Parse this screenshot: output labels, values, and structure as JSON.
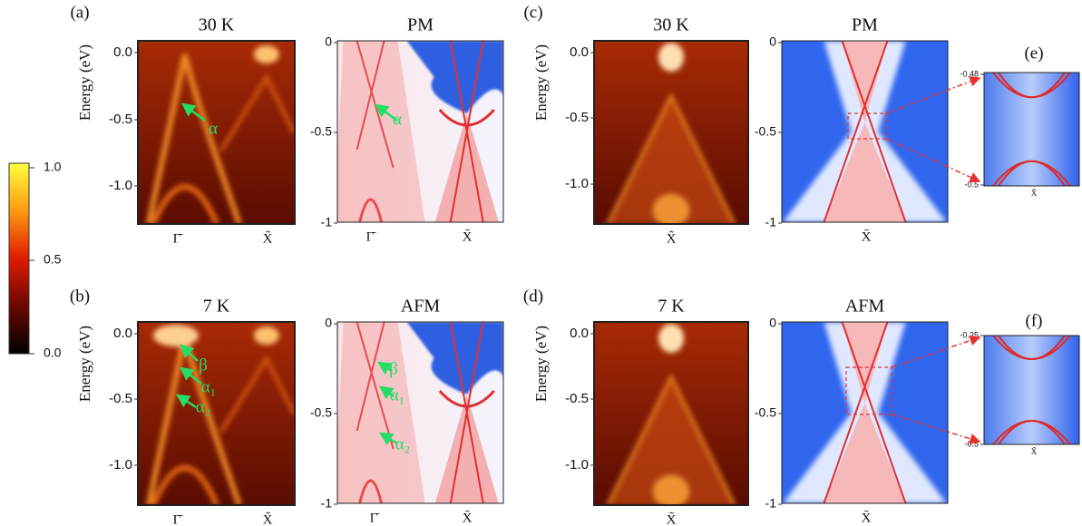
{
  "colorbar": {
    "ticks": [
      "1.0",
      "0.5",
      "0.0"
    ]
  },
  "panel_labels": [
    "(a)",
    "(b)",
    "(c)",
    "(d)",
    "(e)",
    "(f)"
  ],
  "panels": [
    {
      "title": "30 K",
      "y_label": "Energy (eV)",
      "y_ticks": [
        "0.0",
        "-0.5",
        "-1.0"
      ],
      "x_ticks": [
        "Γ̄",
        "X̃"
      ],
      "annotations": [
        "α"
      ]
    },
    {
      "title": "PM",
      "y_ticks": [
        "0",
        "-0.5",
        "-1"
      ],
      "x_ticks": [
        "Γ̄",
        "X̄"
      ],
      "annotations": [
        "α"
      ]
    },
    {
      "title": "30 K",
      "y_label": "Energy (eV)",
      "y_ticks": [
        "0.0",
        "-0.5",
        "-1.0"
      ],
      "x_ticks": [
        "X̃"
      ]
    },
    {
      "title": "PM",
      "y_ticks": [
        "0",
        "-0.5",
        "-1"
      ],
      "x_ticks": [
        "X̄"
      ]
    },
    {
      "y_ticks": [
        "-0.48",
        "-0.5"
      ],
      "x_ticks": [
        "X̃"
      ]
    },
    {
      "title": "7 K",
      "y_label": "Energy (eV)",
      "y_ticks": [
        "0.0",
        "-0.5",
        "-1.0"
      ],
      "x_ticks": [
        "Γ̄",
        "X̃"
      ],
      "annotations": [
        "β",
        "α₁",
        "α₂"
      ]
    },
    {
      "title": "AFM",
      "y_ticks": [
        "0",
        "-0.5",
        "-1"
      ],
      "x_ticks": [
        "Γ̄",
        "X̄"
      ],
      "annotations": [
        "β",
        "α₁",
        "α₂"
      ]
    },
    {
      "title": "7 K",
      "y_label": "Energy (eV)",
      "y_ticks": [
        "0.0",
        "-0.5",
        "-1.0"
      ],
      "x_ticks": [
        "X̃"
      ]
    },
    {
      "title": "AFM",
      "y_ticks": [
        "0",
        "-0.5",
        "-1"
      ],
      "x_ticks": [
        "X̄"
      ]
    },
    {
      "y_ticks": [
        "-0.25",
        "-0.5"
      ],
      "x_ticks": [
        "X̃"
      ]
    }
  ]
}
